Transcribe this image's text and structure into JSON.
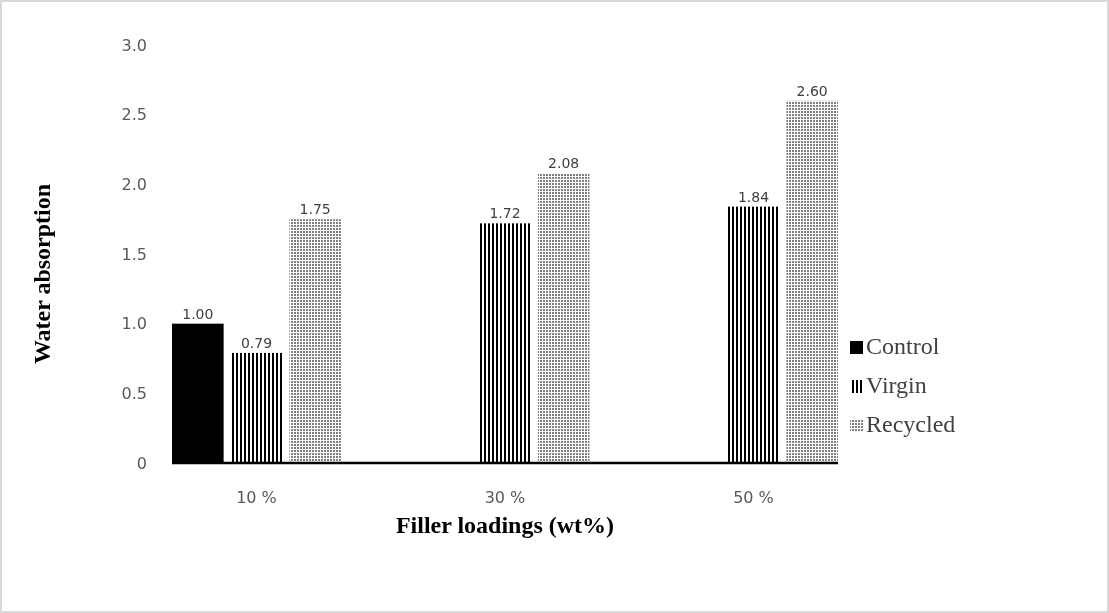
{
  "chart_data": {
    "type": "bar",
    "xlabel": "Filler loadings (wt%)",
    "ylabel": "Water absorption",
    "categories": [
      "10 %",
      "30 %",
      "50 %"
    ],
    "series": [
      {
        "name": "Control",
        "color": "#000000",
        "values": [
          1.0,
          null,
          null
        ],
        "value_labels": [
          "1.00",
          null,
          null
        ]
      },
      {
        "name": "Virgin",
        "color": "#000000",
        "values": [
          0.79,
          1.72,
          1.84
        ],
        "value_labels": [
          "0.79",
          "1.72",
          "1.84"
        ]
      },
      {
        "name": "Recycled",
        "color": "#7f7f7f",
        "values": [
          1.75,
          2.08,
          2.6
        ],
        "value_labels": [
          "1.75",
          "2.08",
          "2.60"
        ]
      }
    ],
    "ylim": [
      0,
      3
    ],
    "yticks": [
      0,
      {
        "value": 0.5,
        "label": "0.5"
      },
      {
        "value": 1,
        "label": "1.0"
      },
      {
        "value": 1.5,
        "label": "1.5"
      },
      {
        "value": 2,
        "label": "2.0"
      },
      {
        "value": 2.5,
        "label": "2.5"
      },
      {
        "value": 3,
        "label": "3.0"
      }
    ],
    "grid": false,
    "legend": "right"
  }
}
